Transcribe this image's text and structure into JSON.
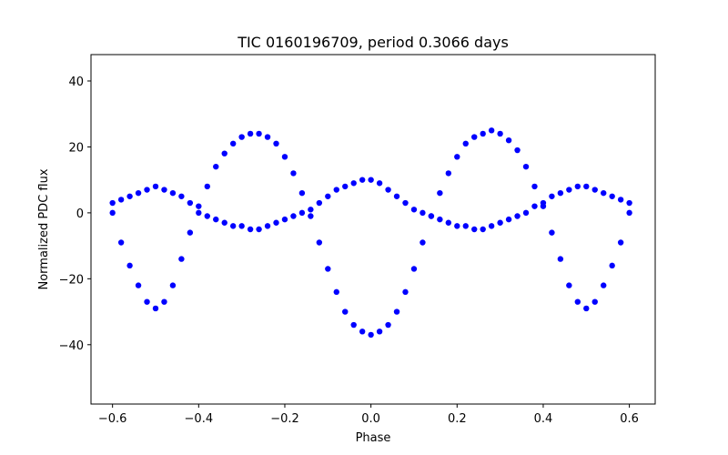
{
  "chart_data": {
    "type": "scatter",
    "title": "TIC 0160196709, period 0.3066 days",
    "xlabel": "Phase",
    "ylabel": "Normalized PDC flux",
    "xlim": [
      -0.65,
      0.66
    ],
    "ylim": [
      -58,
      48
    ],
    "xticks": [
      -0.6,
      -0.4,
      -0.2,
      0.0,
      0.2,
      0.4,
      0.6
    ],
    "xtick_labels": [
      "−0.6",
      "−0.4",
      "−0.2",
      "0.0",
      "0.2",
      "0.4",
      "0.6"
    ],
    "yticks": [
      -40,
      -20,
      0,
      20,
      40
    ],
    "ytick_labels": [
      "−40",
      "−20",
      "0",
      "20",
      "40"
    ],
    "grid": false,
    "marker_color": "#0000ff",
    "series": [
      {
        "x": [
          -0.6,
          -0.58,
          -0.56,
          -0.54,
          -0.52,
          -0.5,
          -0.48,
          -0.46,
          -0.44,
          -0.42,
          -0.4,
          -0.38,
          -0.36,
          -0.34,
          -0.32,
          -0.3,
          -0.28,
          -0.26,
          -0.24,
          -0.22,
          -0.2,
          -0.18,
          -0.16,
          -0.14,
          -0.12,
          -0.1,
          -0.08,
          -0.06,
          -0.04,
          -0.02,
          0.0,
          0.02,
          0.04,
          0.06,
          0.08,
          0.1,
          0.12,
          0.14,
          0.16,
          0.18,
          0.2,
          0.22,
          0.24,
          0.26,
          0.28,
          0.3,
          0.32,
          0.34,
          0.36,
          0.38,
          0.4,
          0.42,
          0.44,
          0.46,
          0.48,
          0.5,
          0.52,
          0.54,
          0.56,
          0.58,
          0.6
        ],
        "values": [
          0,
          -9,
          -16,
          -22,
          -27,
          -29,
          -27,
          -22,
          -14,
          -6,
          2,
          8,
          14,
          18,
          21,
          23,
          24,
          24,
          23,
          21,
          17,
          12,
          6,
          -1,
          -9,
          -17,
          -24,
          -30,
          -34,
          -36,
          -37,
          -36,
          -34,
          -30,
          -24,
          -17,
          -9,
          -1,
          6,
          12,
          17,
          21,
          23,
          24,
          25,
          24,
          22,
          19,
          14,
          8,
          2,
          -6,
          -14,
          -22,
          -27,
          -29,
          -27,
          -22,
          -16,
          -9,
          0
        ]
      },
      {
        "x": [
          -0.6,
          -0.58,
          -0.56,
          -0.54,
          -0.52,
          -0.5,
          -0.48,
          -0.46,
          -0.44,
          -0.42,
          -0.4,
          -0.38,
          -0.36,
          -0.34,
          -0.32,
          -0.3,
          -0.28,
          -0.26,
          -0.24,
          -0.22,
          -0.2,
          -0.18,
          -0.16,
          -0.14,
          -0.12,
          -0.1,
          -0.08,
          -0.06,
          -0.04,
          -0.02,
          0.0,
          0.02,
          0.04,
          0.06,
          0.08,
          0.1,
          0.12,
          0.14,
          0.16,
          0.18,
          0.2,
          0.22,
          0.24,
          0.26,
          0.28,
          0.3,
          0.32,
          0.34,
          0.36,
          0.38,
          0.4,
          0.42,
          0.44,
          0.46,
          0.48,
          0.5,
          0.52,
          0.54,
          0.56,
          0.58,
          0.6
        ],
        "values": [
          3,
          4,
          5,
          6,
          7,
          8,
          7,
          6,
          5,
          3,
          0,
          -1,
          -2,
          -3,
          -4,
          -4,
          -5,
          -5,
          -4,
          -3,
          -2,
          -1,
          0,
          1,
          3,
          5,
          7,
          8,
          9,
          10,
          10,
          9,
          7,
          5,
          3,
          1,
          0,
          -1,
          -2,
          -3,
          -4,
          -4,
          -5,
          -5,
          -4,
          -3,
          -2,
          -1,
          0,
          2,
          3,
          5,
          6,
          7,
          8,
          8,
          7,
          6,
          5,
          4,
          3
        ]
      }
    ]
  }
}
